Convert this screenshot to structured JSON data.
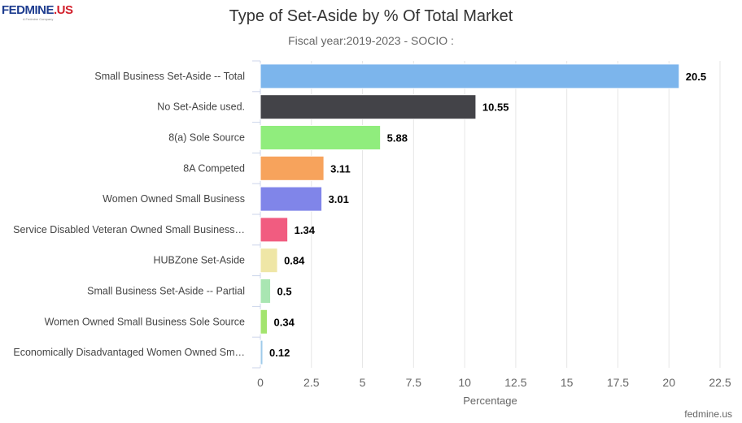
{
  "logo": {
    "text": "FEDMINE.US",
    "tagline": "A Fedmine Company"
  },
  "credit": "fedmine.us",
  "chart_data": {
    "type": "bar",
    "orientation": "horizontal",
    "title": "Type of Set-Aside by % Of Total Market",
    "subtitle": "Fiscal year:2019-2023 - SOCIO :",
    "xlabel": "Percentage",
    "xlim": [
      0,
      22.5
    ],
    "xticks": [
      "0",
      "2.5",
      "5",
      "7.5",
      "10",
      "12.5",
      "15",
      "17.5",
      "20",
      "22.5"
    ],
    "grid": true,
    "categories": [
      "Small Business Set-Aside -- Total",
      "No Set-Aside used.",
      "8(a) Sole Source",
      "8A Competed",
      "Women Owned Small Business",
      "Service Disabled Veteran Owned Small Business…",
      "HUBZone Set-Aside",
      "Small Business Set-Aside -- Partial",
      "Women Owned Small Business Sole Source",
      "Economically Disadvantaged Women Owned Sm…"
    ],
    "values": [
      20.5,
      10.55,
      5.88,
      3.11,
      3.01,
      1.34,
      0.84,
      0.5,
      0.34,
      0.12
    ],
    "colors": [
      "#7cb5ec",
      "#434348",
      "#90ed7d",
      "#f7a35c",
      "#8085e9",
      "#f15c80",
      "#efe6a6",
      "#a9e6b2",
      "#a3e46e",
      "#9fcbea"
    ]
  }
}
